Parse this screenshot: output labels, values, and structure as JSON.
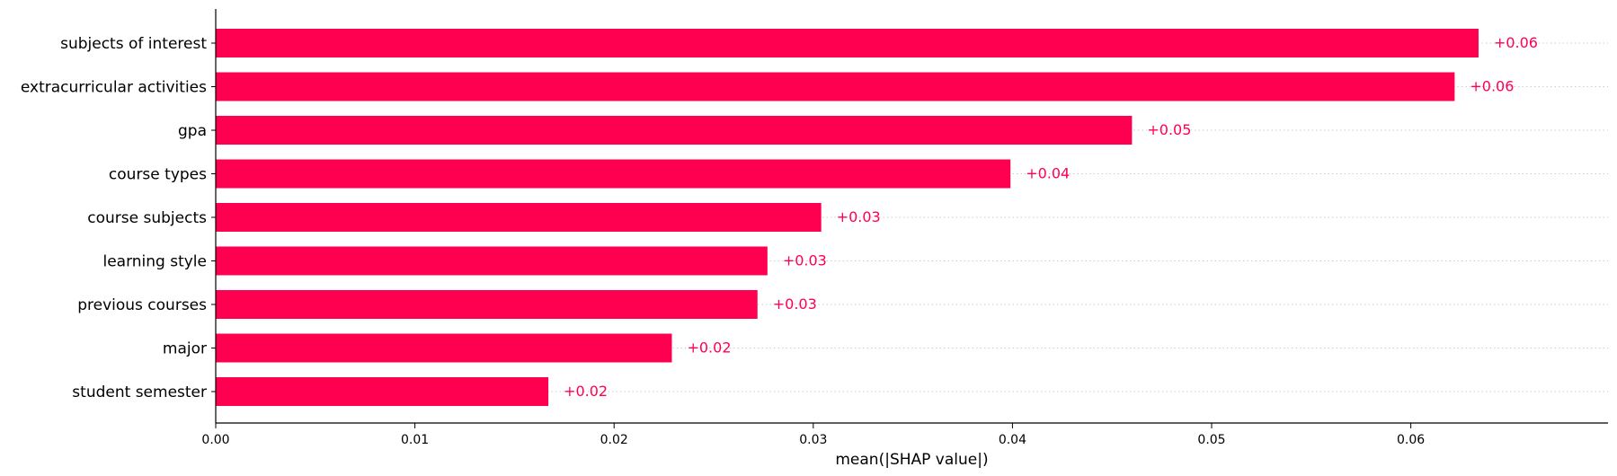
{
  "chart_data": {
    "type": "bar",
    "orientation": "horizontal",
    "categories": [
      "subjects of interest",
      "extracurricular activities",
      "gpa",
      "course types",
      "course subjects",
      "learning style",
      "previous courses",
      "major",
      "student semester"
    ],
    "values": [
      0.0634,
      0.0622,
      0.046,
      0.0399,
      0.0304,
      0.0277,
      0.0272,
      0.0229,
      0.0167
    ],
    "value_labels": [
      "+0.06",
      "+0.06",
      "+0.05",
      "+0.04",
      "+0.03",
      "+0.03",
      "+0.03",
      "+0.02",
      "+0.02"
    ],
    "xlabel": "mean(|SHAP value|)",
    "xlim": [
      0,
      0.0699
    ],
    "xticks": [
      0.0,
      0.01,
      0.02,
      0.03,
      0.04,
      0.05,
      0.06
    ],
    "xtick_labels": [
      "0.00",
      "0.01",
      "0.02",
      "0.03",
      "0.04",
      "0.05",
      "0.06"
    ],
    "bar_color": "#ff0051",
    "gridlines": "horizontal dotted per bar",
    "legend": "none"
  }
}
